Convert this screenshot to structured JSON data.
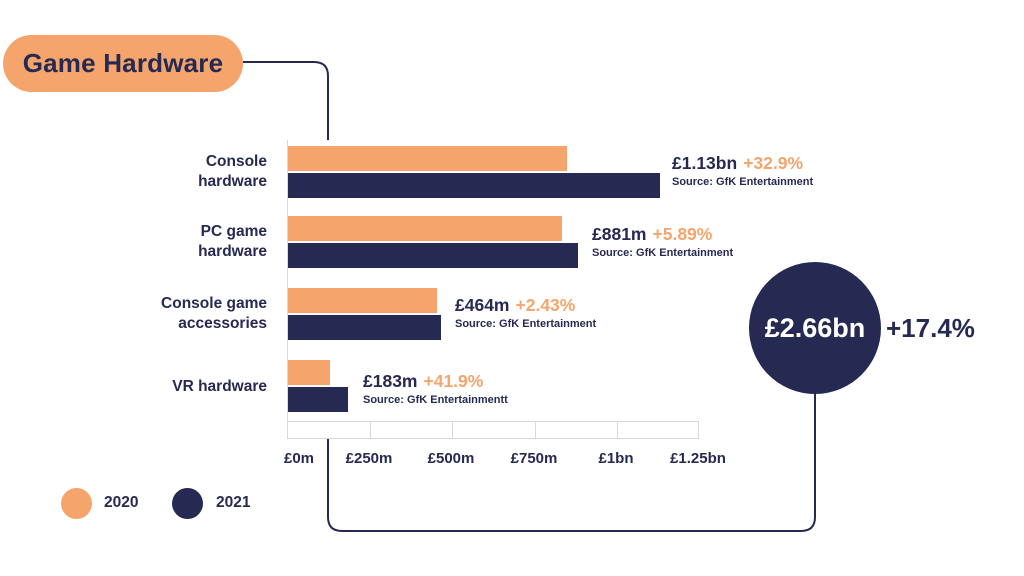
{
  "title": "Game Hardware",
  "colors": {
    "orange": "#F5A46C",
    "navy": "#262A52",
    "grid_gray": "#D8D8D8",
    "background": "#FFFFFF"
  },
  "legend": {
    "items": [
      {
        "label": "2020",
        "color": "#F5A46C"
      },
      {
        "label": "2021",
        "color": "#262A52"
      }
    ]
  },
  "summary": {
    "value": "£2.66bn",
    "change": "+17.4%"
  },
  "axis": {
    "ticks": [
      "£0m",
      "£250m",
      "£500m",
      "£750m",
      "£1bn",
      "£1.25bn"
    ]
  },
  "rows": [
    {
      "label": "Console\nhardware",
      "value": "£1.13bn",
      "change": "+32.9%",
      "source": "Source: GfK Entertainment"
    },
    {
      "label": "PC game\nhardware",
      "value": "£881m",
      "change": "+5.89%",
      "source": "Source: GfK Entertainment"
    },
    {
      "label": "Console game\naccessories",
      "value": "£464m",
      "change": "+2.43%",
      "source": "Source: GfK Entertainment"
    },
    {
      "label": "VR hardware",
      "value": "£183m",
      "change": "+41.9%",
      "source": "Source: GfK Entertainmentt"
    }
  ],
  "chart_data": {
    "type": "bar",
    "orientation": "horizontal",
    "title": "Game Hardware",
    "categories": [
      "Console hardware",
      "PC game hardware",
      "Console game accessories",
      "VR hardware"
    ],
    "series": [
      {
        "name": "2020",
        "color": "#F5A46C",
        "values_gbp_m": [
          850,
          832,
          453,
          129
        ]
      },
      {
        "name": "2021",
        "color": "#262A52",
        "values_gbp_m": [
          1130,
          881,
          464,
          183
        ]
      }
    ],
    "data_labels": [
      "£1.13bn +32.9%",
      "£881m +5.89%",
      "£464m +2.43%",
      "£183m +41.9%"
    ],
    "x_ticks_gbp_m": [
      0,
      250,
      500,
      750,
      1000,
      1250
    ],
    "xlim_gbp_m": [
      0,
      1250
    ],
    "x_tick_labels": [
      "£0m",
      "£250m",
      "£500m",
      "£750m",
      "£1bn",
      "£1.25bn"
    ],
    "total": {
      "value_label": "£2.66bn",
      "yoy_change": "+17.4%"
    },
    "legend_position": "bottom-left",
    "grid": false,
    "source": "GfK Entertainment"
  }
}
